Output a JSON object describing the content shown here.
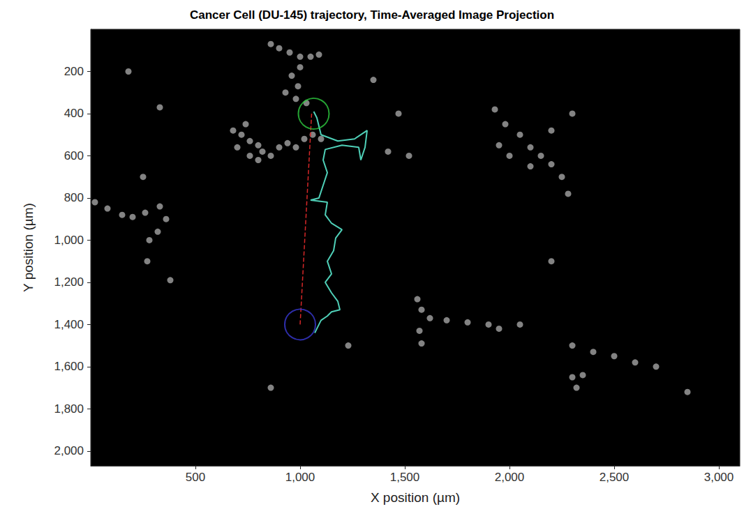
{
  "chart_data": {
    "type": "scatter",
    "title": "Cancer Cell (DU-145) trajectory, Time-Averaged Image Projection",
    "x_label": "X position (µm)",
    "y_label": "Y position (µm)",
    "xlim": [
      0,
      3100
    ],
    "ylim": [
      2070,
      0
    ],
    "xticks": [
      500,
      1000,
      1500,
      2000,
      2500,
      3000
    ],
    "yticks": [
      200,
      400,
      600,
      800,
      1000,
      1200,
      1400,
      1600,
      1800,
      2000
    ],
    "grid": false,
    "series": [
      {
        "type": "scatter",
        "color": "#9a9a9a",
        "marker": "circle",
        "values": [
          [
            860,
            70
          ],
          [
            900,
            90
          ],
          [
            950,
            110
          ],
          [
            1000,
            130
          ],
          [
            1050,
            130
          ],
          [
            1090,
            120
          ],
          [
            1000,
            180
          ],
          [
            960,
            220
          ],
          [
            990,
            270
          ],
          [
            930,
            300
          ],
          [
            980,
            330
          ],
          [
            1030,
            350
          ],
          [
            680,
            480
          ],
          [
            720,
            500
          ],
          [
            760,
            530
          ],
          [
            800,
            550
          ],
          [
            700,
            560
          ],
          [
            760,
            600
          ],
          [
            820,
            580
          ],
          [
            860,
            600
          ],
          [
            900,
            560
          ],
          [
            940,
            540
          ],
          [
            980,
            560
          ],
          [
            1020,
            520
          ],
          [
            1060,
            500
          ],
          [
            1100,
            520
          ],
          [
            740,
            450
          ],
          [
            800,
            620
          ],
          [
            20,
            820
          ],
          [
            80,
            850
          ],
          [
            150,
            880
          ],
          [
            200,
            890
          ],
          [
            260,
            870
          ],
          [
            330,
            840
          ],
          [
            360,
            900
          ],
          [
            320,
            960
          ],
          [
            280,
            1000
          ],
          [
            250,
            700
          ],
          [
            1930,
            380
          ],
          [
            1980,
            450
          ],
          [
            2050,
            500
          ],
          [
            2100,
            560
          ],
          [
            2150,
            600
          ],
          [
            2200,
            640
          ],
          [
            2250,
            700
          ],
          [
            2280,
            780
          ],
          [
            2100,
            650
          ],
          [
            2000,
            600
          ],
          [
            1950,
            550
          ],
          [
            2300,
            400
          ],
          [
            2200,
            480
          ],
          [
            1560,
            1280
          ],
          [
            1580,
            1330
          ],
          [
            1620,
            1370
          ],
          [
            1700,
            1380
          ],
          [
            1800,
            1390
          ],
          [
            1900,
            1400
          ],
          [
            1950,
            1420
          ],
          [
            2050,
            1400
          ],
          [
            1570,
            1430
          ],
          [
            1580,
            1490
          ],
          [
            2300,
            1500
          ],
          [
            2400,
            1530
          ],
          [
            2500,
            1550
          ],
          [
            2600,
            1580
          ],
          [
            2700,
            1600
          ],
          [
            2850,
            1720
          ],
          [
            2300,
            1650
          ],
          [
            2320,
            1700
          ],
          [
            2350,
            1640
          ],
          [
            180,
            200
          ],
          [
            330,
            370
          ],
          [
            270,
            1100
          ],
          [
            380,
            1190
          ],
          [
            860,
            1700
          ],
          [
            1230,
            1500
          ],
          [
            2200,
            1100
          ],
          [
            1420,
            580
          ],
          [
            1520,
            600
          ],
          [
            1350,
            240
          ],
          [
            1470,
            400
          ]
        ]
      },
      {
        "type": "line",
        "color": "#4fd0b8",
        "line_style": "solid",
        "values": [
          [
            1065,
            390
          ],
          [
            1080,
            420
          ],
          [
            1100,
            500
          ],
          [
            1180,
            530
          ],
          [
            1260,
            520
          ],
          [
            1320,
            480
          ],
          [
            1310,
            560
          ],
          [
            1290,
            620
          ],
          [
            1280,
            560
          ],
          [
            1200,
            550
          ],
          [
            1120,
            570
          ],
          [
            1110,
            620
          ],
          [
            1130,
            680
          ],
          [
            1110,
            740
          ],
          [
            1090,
            800
          ],
          [
            1050,
            810
          ],
          [
            1130,
            820
          ],
          [
            1120,
            880
          ],
          [
            1150,
            920
          ],
          [
            1200,
            950
          ],
          [
            1170,
            990
          ],
          [
            1160,
            1050
          ],
          [
            1130,
            1100
          ],
          [
            1150,
            1160
          ],
          [
            1120,
            1200
          ],
          [
            1150,
            1250
          ],
          [
            1180,
            1290
          ],
          [
            1190,
            1330
          ],
          [
            1150,
            1340
          ],
          [
            1130,
            1360
          ],
          [
            1100,
            1380
          ],
          [
            1080,
            1420
          ],
          [
            1070,
            1440
          ]
        ]
      },
      {
        "type": "line",
        "color": "#d62728",
        "line_style": "dashed",
        "values": [
          [
            1000,
            1400
          ],
          [
            1055,
            400
          ]
        ]
      },
      {
        "type": "scatter",
        "color": "#2ecc40",
        "marker": "ring",
        "values": [
          [
            1065,
            400
          ]
        ]
      },
      {
        "type": "scatter",
        "color": "#3a3ad6",
        "marker": "ring",
        "values": [
          [
            1000,
            1400
          ]
        ]
      }
    ]
  }
}
